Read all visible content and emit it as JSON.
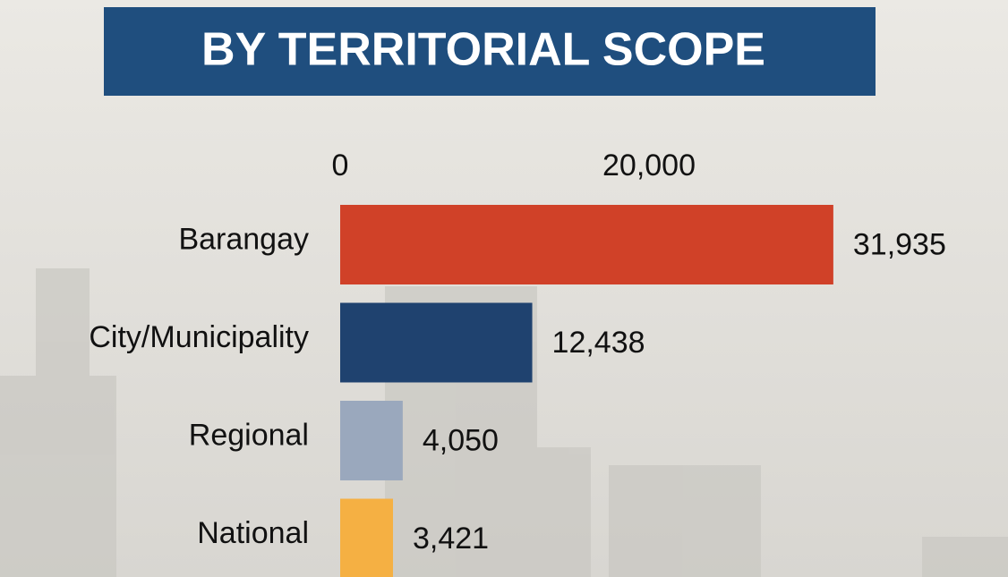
{
  "chart_data": {
    "type": "bar",
    "orientation": "horizontal",
    "title": "BY TERRITORIAL SCOPE",
    "categories": [
      "Barangay",
      "City/Municipality",
      "Regional",
      "National"
    ],
    "values": [
      31935,
      12438,
      4050,
      3421
    ],
    "value_labels": [
      "31,935",
      "12,438",
      "4,050",
      "3,421"
    ],
    "colors": [
      "#d04128",
      "#1f426f",
      "#9aa8bd",
      "#f5b043"
    ],
    "xlim": [
      0,
      35000
    ],
    "xticks": [
      0,
      {
        "value": 20000,
        "label": "20,000"
      }
    ],
    "grid": false
  }
}
